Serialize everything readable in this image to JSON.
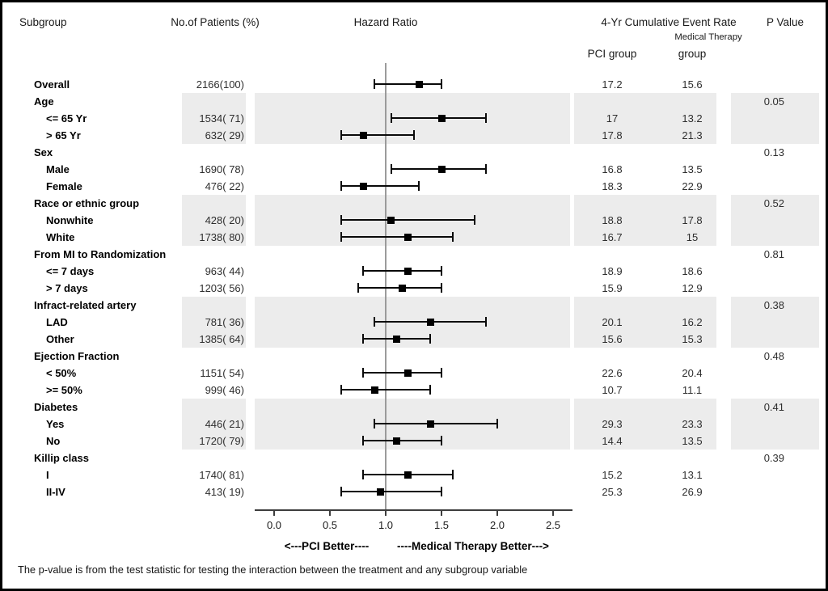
{
  "header": {
    "subgroup": "Subgroup",
    "patients": "No.of Patients (%)",
    "hazard_ratio": "Hazard Ratio",
    "event_rate": "4-Yr Cumulative Event Rate",
    "p_value": "P Value",
    "medical_therapy_line1": "Medical Therapy",
    "pci_group": "PCI group",
    "medical_therapy_line2": "group"
  },
  "footnote": "The p-value is from the test statistic for testing the interaction between the treatment and any subgroup variable",
  "colors": {
    "shaded_band": "#ececec",
    "marker": "#000000",
    "ci_line": "#0a0a0a",
    "reference_line": "#9b9b9b",
    "axis": "#3d3d3d"
  },
  "chart_data": {
    "type": "scatter",
    "subtype": "forest-plot",
    "title": "",
    "xlabel": "Hazard Ratio",
    "x_axis": {
      "ticks": [
        0.0,
        0.5,
        1.0,
        1.5,
        2.0,
        2.5
      ],
      "xlim": [
        -0.17,
        2.67
      ],
      "reference_line": 1.0,
      "left_label": "<---PCI Better----",
      "right_label": "----Medical Therapy Better--->"
    },
    "rows": [
      {
        "type": "data",
        "indent": 0,
        "label": "Overall",
        "patients": "2166(100)",
        "hr": 1.3,
        "ci": [
          0.9,
          1.5
        ],
        "pci_rate": "17.2",
        "mt_rate": "15.6",
        "p": "",
        "shaded": false
      },
      {
        "type": "group",
        "label": "Age",
        "p": "0.05",
        "shaded": true
      },
      {
        "type": "data",
        "indent": 1,
        "label": "<= 65 Yr",
        "patients": "1534( 71)",
        "hr": 1.5,
        "ci": [
          1.05,
          1.9
        ],
        "pci_rate": "17",
        "mt_rate": "13.2",
        "p": "",
        "shaded": true
      },
      {
        "type": "data",
        "indent": 1,
        "label": "> 65 Yr",
        "patients": "632( 29)",
        "hr": 0.8,
        "ci": [
          0.6,
          1.25
        ],
        "pci_rate": "17.8",
        "mt_rate": "21.3",
        "p": "",
        "shaded": true
      },
      {
        "type": "group",
        "label": "Sex",
        "p": "0.13",
        "shaded": false
      },
      {
        "type": "data",
        "indent": 1,
        "label": "Male",
        "patients": "1690( 78)",
        "hr": 1.5,
        "ci": [
          1.05,
          1.9
        ],
        "pci_rate": "16.8",
        "mt_rate": "13.5",
        "p": "",
        "shaded": false
      },
      {
        "type": "data",
        "indent": 1,
        "label": "Female",
        "patients": "476( 22)",
        "hr": 0.8,
        "ci": [
          0.6,
          1.3
        ],
        "pci_rate": "18.3",
        "mt_rate": "22.9",
        "p": "",
        "shaded": false
      },
      {
        "type": "group",
        "label": "Race or ethnic group",
        "p": "0.52",
        "shaded": true
      },
      {
        "type": "data",
        "indent": 1,
        "label": "Nonwhite",
        "patients": "428( 20)",
        "hr": 1.05,
        "ci": [
          0.6,
          1.8
        ],
        "pci_rate": "18.8",
        "mt_rate": "17.8",
        "p": "",
        "shaded": true
      },
      {
        "type": "data",
        "indent": 1,
        "label": "White",
        "patients": "1738( 80)",
        "hr": 1.2,
        "ci": [
          0.6,
          1.6
        ],
        "pci_rate": "16.7",
        "mt_rate": "15",
        "p": "",
        "shaded": true
      },
      {
        "type": "group",
        "label": "From MI to Randomization",
        "p": "0.81",
        "shaded": false
      },
      {
        "type": "data",
        "indent": 1,
        "label": "<= 7 days",
        "patients": "963( 44)",
        "hr": 1.2,
        "ci": [
          0.8,
          1.5
        ],
        "pci_rate": "18.9",
        "mt_rate": "18.6",
        "p": "",
        "shaded": false
      },
      {
        "type": "data",
        "indent": 1,
        "label": "> 7 days",
        "patients": "1203( 56)",
        "hr": 1.15,
        "ci": [
          0.75,
          1.5
        ],
        "pci_rate": "15.9",
        "mt_rate": "12.9",
        "p": "",
        "shaded": false
      },
      {
        "type": "group",
        "label": "Infract-related artery",
        "p": "0.38",
        "shaded": true
      },
      {
        "type": "data",
        "indent": 1,
        "label": "LAD",
        "patients": "781( 36)",
        "hr": 1.4,
        "ci": [
          0.9,
          1.9
        ],
        "pci_rate": "20.1",
        "mt_rate": "16.2",
        "p": "",
        "shaded": true
      },
      {
        "type": "data",
        "indent": 1,
        "label": "Other",
        "patients": "1385( 64)",
        "hr": 1.1,
        "ci": [
          0.8,
          1.4
        ],
        "pci_rate": "15.6",
        "mt_rate": "15.3",
        "p": "",
        "shaded": true
      },
      {
        "type": "group",
        "label": "Ejection Fraction",
        "p": "0.48",
        "shaded": false
      },
      {
        "type": "data",
        "indent": 1,
        "label": "< 50%",
        "patients": "1151( 54)",
        "hr": 1.2,
        "ci": [
          0.8,
          1.5
        ],
        "pci_rate": "22.6",
        "mt_rate": "20.4",
        "p": "",
        "shaded": false
      },
      {
        "type": "data",
        "indent": 1,
        "label": ">= 50%",
        "patients": "999( 46)",
        "hr": 0.9,
        "ci": [
          0.6,
          1.4
        ],
        "pci_rate": "10.7",
        "mt_rate": "11.1",
        "p": "",
        "shaded": false
      },
      {
        "type": "group",
        "label": "Diabetes",
        "p": "0.41",
        "shaded": true
      },
      {
        "type": "data",
        "indent": 1,
        "label": "Yes",
        "patients": "446( 21)",
        "hr": 1.4,
        "ci": [
          0.9,
          2.0
        ],
        "pci_rate": "29.3",
        "mt_rate": "23.3",
        "p": "",
        "shaded": true
      },
      {
        "type": "data",
        "indent": 1,
        "label": "No",
        "patients": "1720( 79)",
        "hr": 1.1,
        "ci": [
          0.8,
          1.5
        ],
        "pci_rate": "14.4",
        "mt_rate": "13.5",
        "p": "",
        "shaded": true
      },
      {
        "type": "group",
        "label": "Killip class",
        "p": "0.39",
        "shaded": false
      },
      {
        "type": "data",
        "indent": 1,
        "label": "I",
        "patients": "1740( 81)",
        "hr": 1.2,
        "ci": [
          0.8,
          1.6
        ],
        "pci_rate": "15.2",
        "mt_rate": "13.1",
        "p": "",
        "shaded": false
      },
      {
        "type": "data",
        "indent": 1,
        "label": "II-IV",
        "patients": "413( 19)",
        "hr": 0.95,
        "ci": [
          0.6,
          1.5
        ],
        "pci_rate": "25.3",
        "mt_rate": "26.9",
        "p": "",
        "shaded": false
      }
    ]
  }
}
